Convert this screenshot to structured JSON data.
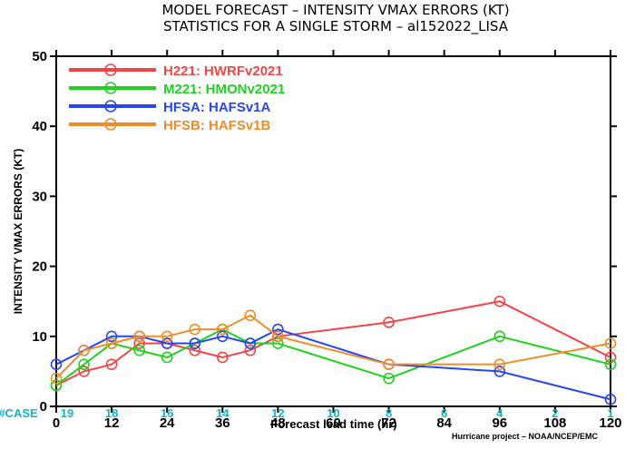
{
  "chart_data": {
    "type": "line",
    "title_line1": "MODEL FORECAST – INTENSITY VMAX ERRORS (KT)",
    "title_line2": "STATISTICS FOR A SINGLE STORM – al152022_LISA",
    "ylabel": "INTENSITY VMAX ERRORS (KT)",
    "xlabel": "Forecast lead time (hr)",
    "xlim": [
      0,
      120
    ],
    "ylim": [
      0,
      50
    ],
    "x_ticks": [
      0,
      12,
      24,
      36,
      48,
      60,
      72,
      84,
      96,
      108,
      120
    ],
    "x_tick_labels": [
      "0",
      "12",
      "24",
      "36",
      "48",
      "60",
      "72",
      "84",
      "96",
      "108",
      "120"
    ],
    "y_ticks": [
      0,
      10,
      20,
      30,
      40,
      50
    ],
    "y_tick_labels": [
      "0",
      "10",
      "20",
      "30",
      "40",
      "50"
    ],
    "case_label": "#CASE",
    "case_counts": [
      "19",
      "18",
      "16",
      "14",
      "12",
      "10",
      "8",
      "6",
      "4",
      "2",
      "1"
    ],
    "credit": "Hurricane project – NOAA/NCEP/EMC",
    "grid": false,
    "legend_position": "top-left",
    "series": [
      {
        "name": "H221: HWRFv2021",
        "color": "#f04646",
        "x": [
          0,
          6,
          12,
          18,
          24,
          30,
          36,
          42,
          48,
          72,
          96,
          120
        ],
        "y": [
          3,
          5,
          6,
          9,
          9,
          8,
          7,
          8,
          10,
          12,
          15,
          7
        ]
      },
      {
        "name": "M221: HMONv2021",
        "color": "#1ed21e",
        "x": [
          0,
          6,
          12,
          18,
          24,
          30,
          36,
          42,
          48,
          72,
          96,
          120
        ],
        "y": [
          3,
          6,
          9,
          8,
          7,
          9,
          11,
          9,
          9,
          4,
          10,
          6
        ]
      },
      {
        "name": "HFSA: HAFSv1A",
        "color": "#2846f0",
        "x": [
          0,
          6,
          12,
          18,
          24,
          30,
          36,
          42,
          48,
          72,
          96,
          120
        ],
        "y": [
          6,
          8,
          10,
          10,
          9,
          9,
          10,
          9,
          11,
          6,
          5,
          1
        ]
      },
      {
        "name": "HFSB: HAFSv1B",
        "color": "#f08c28",
        "x": [
          0,
          6,
          12,
          18,
          24,
          30,
          36,
          42,
          48,
          72,
          96,
          120
        ],
        "y": [
          4,
          8,
          9,
          10,
          10,
          11,
          11,
          13,
          10,
          6,
          6,
          9
        ]
      }
    ]
  }
}
